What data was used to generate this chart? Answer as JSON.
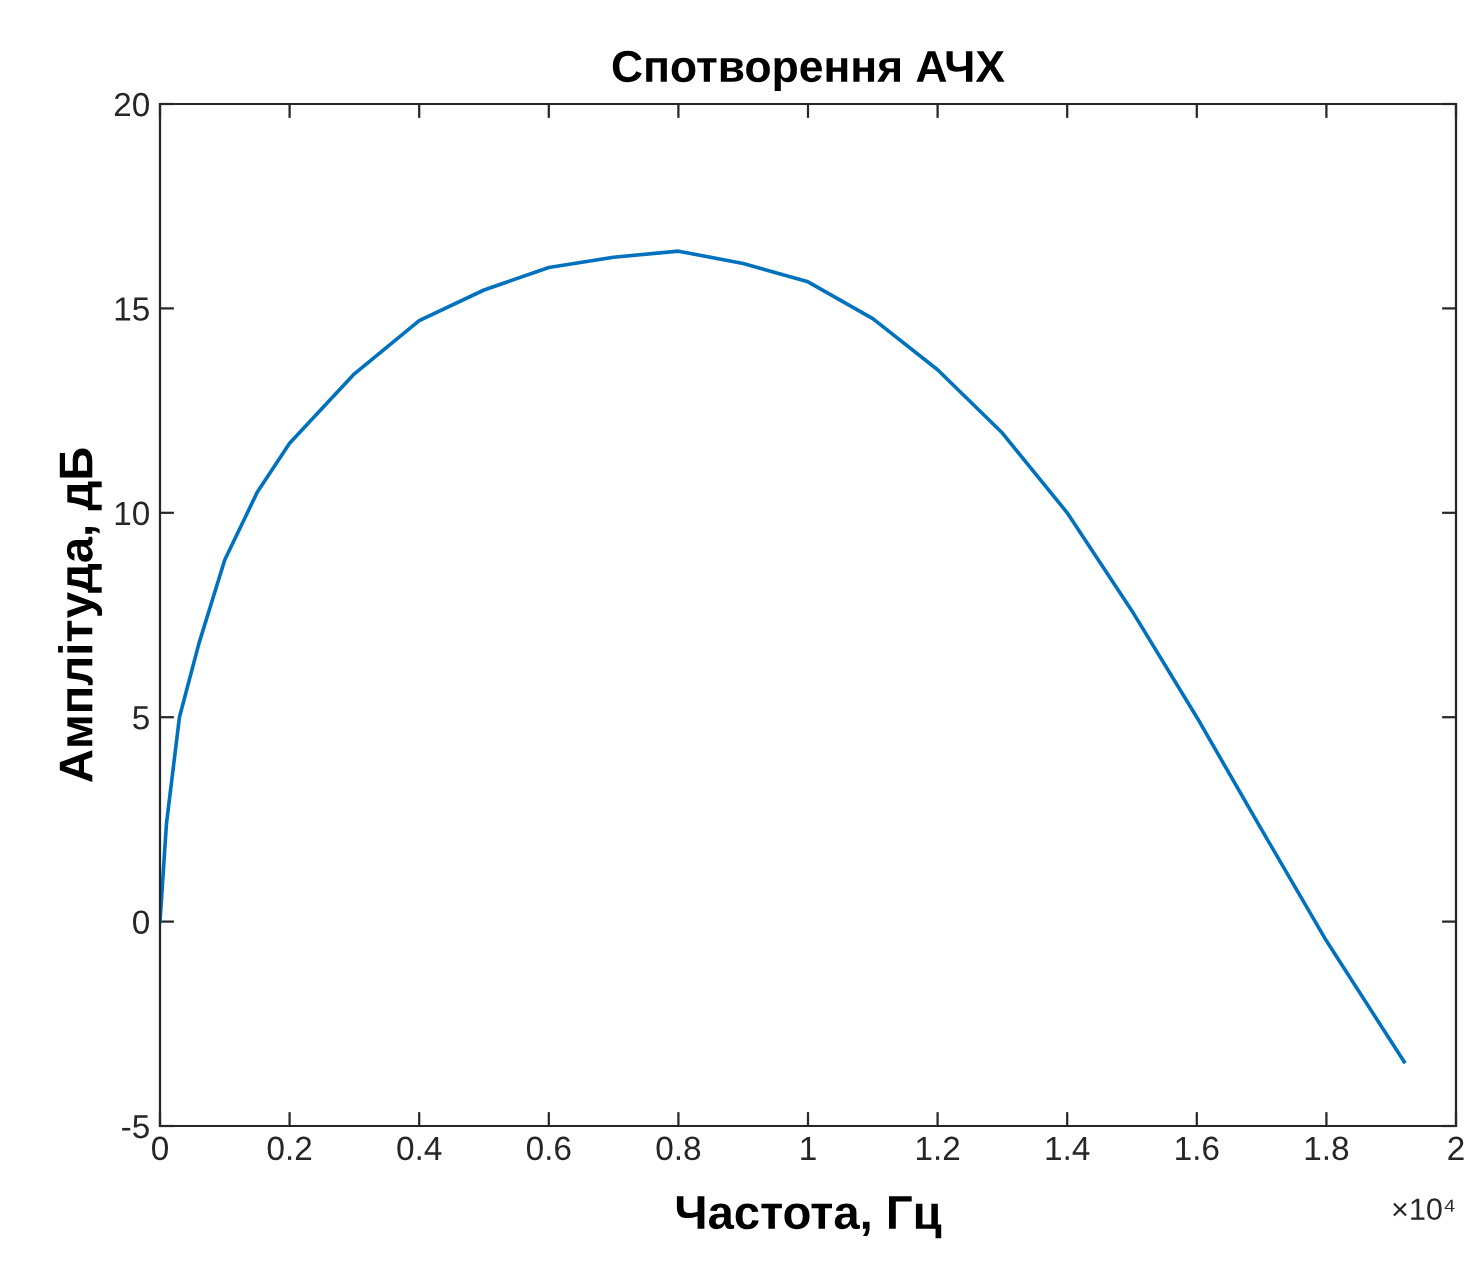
{
  "chart_data": {
    "type": "line",
    "title": "Спотворення АЧХ",
    "xlabel": "Частота, Гц",
    "ylabel": "Амплітуда, дБ",
    "annotations": [
      "×10⁴"
    ],
    "series": [
      {
        "color": "#0072bd",
        "x": [
          0,
          0.01,
          0.03,
          0.06,
          0.1,
          0.15,
          0.2,
          0.3,
          0.4,
          0.5,
          0.6,
          0.7,
          0.8,
          0.9,
          1.0,
          1.1,
          1.2,
          1.3,
          1.4,
          1.5,
          1.6,
          1.7,
          1.8,
          1.92
        ],
        "values": [
          0,
          2.4,
          5.0,
          6.8,
          8.85,
          10.5,
          11.7,
          13.4,
          14.7,
          15.45,
          16.0,
          16.25,
          16.4,
          16.1,
          15.65,
          14.75,
          13.5,
          11.95,
          10.0,
          7.6,
          5.0,
          2.25,
          -0.47,
          -3.43
        ]
      }
    ],
    "xlim": [
      0,
      2
    ],
    "ylim": [
      -5,
      20
    ],
    "xticks": [
      0,
      0.2,
      0.4,
      0.6,
      0.8,
      1,
      1.2,
      1.4,
      1.6,
      1.8,
      2
    ],
    "yticks": [
      -5,
      0,
      5,
      10,
      15,
      20
    ],
    "grid": false,
    "legend": false,
    "marker": "none",
    "line_style": "solid"
  }
}
